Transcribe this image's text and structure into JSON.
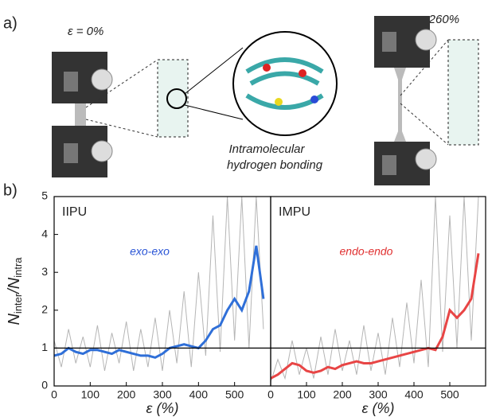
{
  "panel_a": {
    "label": "a)",
    "strain_left": "ε = 0%",
    "strain_right": "ε = 260%",
    "inset_caption": [
      "Intramolecular",
      "hydrogen bonding"
    ]
  },
  "panel_b_label": "b)",
  "chart_data": [
    {
      "type": "line",
      "title": "IIPU",
      "annotation": "exo-exo",
      "annotation_color": "#2a55d6",
      "y_label": [
        "N",
        "inter",
        "/N",
        "intra"
      ],
      "x_label": "ε (%)",
      "xlim": [
        0,
        600
      ],
      "xticks": [
        0,
        100,
        200,
        300,
        400,
        500
      ],
      "ylim": [
        0,
        5
      ],
      "yticks": [
        0,
        1,
        2,
        3,
        4,
        5
      ],
      "hline": 1,
      "x": [
        0,
        20,
        40,
        60,
        80,
        100,
        120,
        140,
        160,
        180,
        200,
        220,
        240,
        260,
        280,
        300,
        320,
        340,
        360,
        380,
        400,
        420,
        440,
        460,
        480,
        500,
        520,
        540,
        560,
        580
      ],
      "series": [
        {
          "color": "#b5b5b5",
          "values": [
            1.2,
            0.5,
            1.5,
            0.6,
            1.3,
            0.5,
            1.6,
            0.4,
            1.4,
            0.6,
            1.7,
            0.4,
            1.5,
            0.5,
            1.8,
            0.4,
            2.0,
            0.6,
            2.5,
            0.5,
            3.0,
            0.8,
            4.5,
            0.9,
            5.0,
            1.2,
            5.0,
            1.0,
            5.0,
            1.5
          ]
        },
        {
          "color": "#2f6fd8",
          "values": [
            0.8,
            0.85,
            1.0,
            0.9,
            0.85,
            0.95,
            0.95,
            0.9,
            0.85,
            0.95,
            0.9,
            0.85,
            0.8,
            0.8,
            0.75,
            0.85,
            1.0,
            1.05,
            1.1,
            1.05,
            1.0,
            1.2,
            1.5,
            1.6,
            2.0,
            2.3,
            2.0,
            2.5,
            3.7,
            2.3
          ]
        }
      ]
    },
    {
      "type": "line",
      "title": "IMPU",
      "annotation": "endo-endo",
      "annotation_color": "#e03030",
      "x_label": "ε (%)",
      "xlim": [
        0,
        600
      ],
      "xticks": [
        0,
        100,
        200,
        300,
        400,
        500
      ],
      "ylim": [
        0,
        5
      ],
      "hline": 1,
      "x": [
        0,
        20,
        40,
        60,
        80,
        100,
        120,
        140,
        160,
        180,
        200,
        220,
        240,
        260,
        280,
        300,
        320,
        340,
        360,
        380,
        400,
        420,
        440,
        460,
        480,
        500,
        520,
        540,
        560,
        580
      ],
      "series": [
        {
          "color": "#b5b5b5",
          "values": [
            0.1,
            0.7,
            0.2,
            1.2,
            0.3,
            1.0,
            0.2,
            1.3,
            0.3,
            1.5,
            0.4,
            1.2,
            0.3,
            1.6,
            0.4,
            1.4,
            0.3,
            1.8,
            0.5,
            2.2,
            0.6,
            2.8,
            0.5,
            5.0,
            0.9,
            4.5,
            1.0,
            5.0,
            1.2,
            5.0
          ]
        },
        {
          "color": "#e84545",
          "values": [
            0.2,
            0.3,
            0.45,
            0.6,
            0.55,
            0.4,
            0.35,
            0.4,
            0.5,
            0.45,
            0.55,
            0.6,
            0.65,
            0.6,
            0.6,
            0.65,
            0.7,
            0.75,
            0.8,
            0.85,
            0.9,
            0.95,
            1.0,
            0.95,
            1.3,
            2.0,
            1.8,
            2.0,
            2.3,
            3.5
          ]
        }
      ]
    }
  ]
}
